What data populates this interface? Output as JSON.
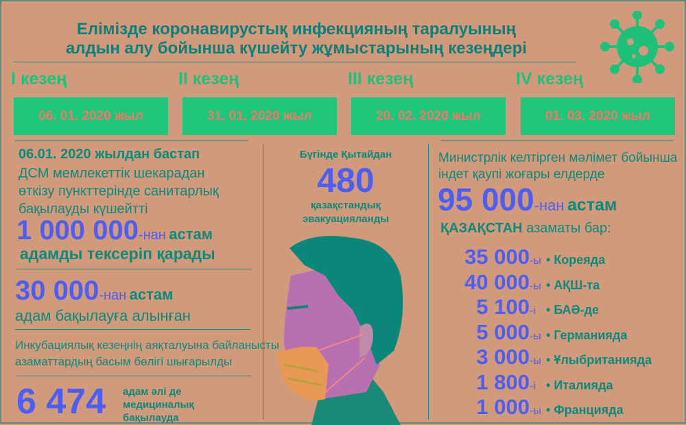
{
  "title": {
    "line1": "Елімізде коронавирустық инфекцияның таралуының",
    "line2": "алдын алу бойынша күшейту жұмыстарының кезеңдері"
  },
  "stages": [
    {
      "label": "I кезең",
      "date": "06. 01. 2020 жыл"
    },
    {
      "label": "II кезең",
      "date": "31. 01. 2020 жыл"
    },
    {
      "label": "III кезең",
      "date": "20. 02. 2020 жыл"
    },
    {
      "label": "IV кезең",
      "date": "01. 03. 2020 жыл"
    }
  ],
  "left": {
    "heading": "06.01. 2020 жылдан бастап",
    "text1": "ДСМ мемлекеттік шекарадан",
    "text2": "өткізу пункттерінде санитарлық",
    "text3": "бақылауды күшейтті",
    "big1": "1 000 000",
    "big1_suffix": "-нан",
    "big1_word": "астам",
    "big1_text": "адамды тексеріп қарады",
    "big2": "30 000",
    "big2_suffix": "-нан",
    "big2_word": "астам",
    "big2_text": "адам бақылауға алынған",
    "incub1": "Инкубациялық кезеңнің аяқталуына байланысты",
    "incub2": "азаматтардың басым бөлігі шығарылды",
    "big3": "6 474",
    "big3_t1": "адам әлі де",
    "big3_t2": "медициналық",
    "big3_t3": "бақылауда"
  },
  "center": {
    "line1": "Бүгінде Қытайдан",
    "number": "480",
    "line2": "қазақстандық",
    "line3": "эвакуацияланды"
  },
  "right": {
    "text1": "Министрлік келтірген мәлімет бойынша",
    "text2": "індет қаупі жоғары елдерде",
    "big": "95 000",
    "big_suffix": "-нан",
    "big_word": "астам",
    "country": "ҚАЗАҚСТАН",
    "country_text": "азаматы бар:",
    "rows": [
      {
        "num": "35 000",
        "suf": "-ы",
        "country": "Кореяда"
      },
      {
        "num": "40 000",
        "suf": "-ы",
        "country": "АҚШ-та"
      },
      {
        "num": "5 100",
        "suf": "-і",
        "country": "БАӘ-де"
      },
      {
        "num": "5 000",
        "suf": "-ы",
        "country": "Германияда"
      },
      {
        "num": "3 000",
        "suf": "-ы",
        "country": "Ұлыбританияда"
      },
      {
        "num": "1 800",
        "suf": "-і",
        "country": "Италияда"
      },
      {
        "num": "1 000",
        "suf": "-ы",
        "country": "Францияда"
      }
    ]
  },
  "colors": {
    "background": "#d29a7c",
    "teal": "#0b8a7b",
    "blue": "#4f5ef2",
    "green": "#1fc67a"
  },
  "icons": [
    "virus-icon",
    "masked-person-illustration"
  ]
}
